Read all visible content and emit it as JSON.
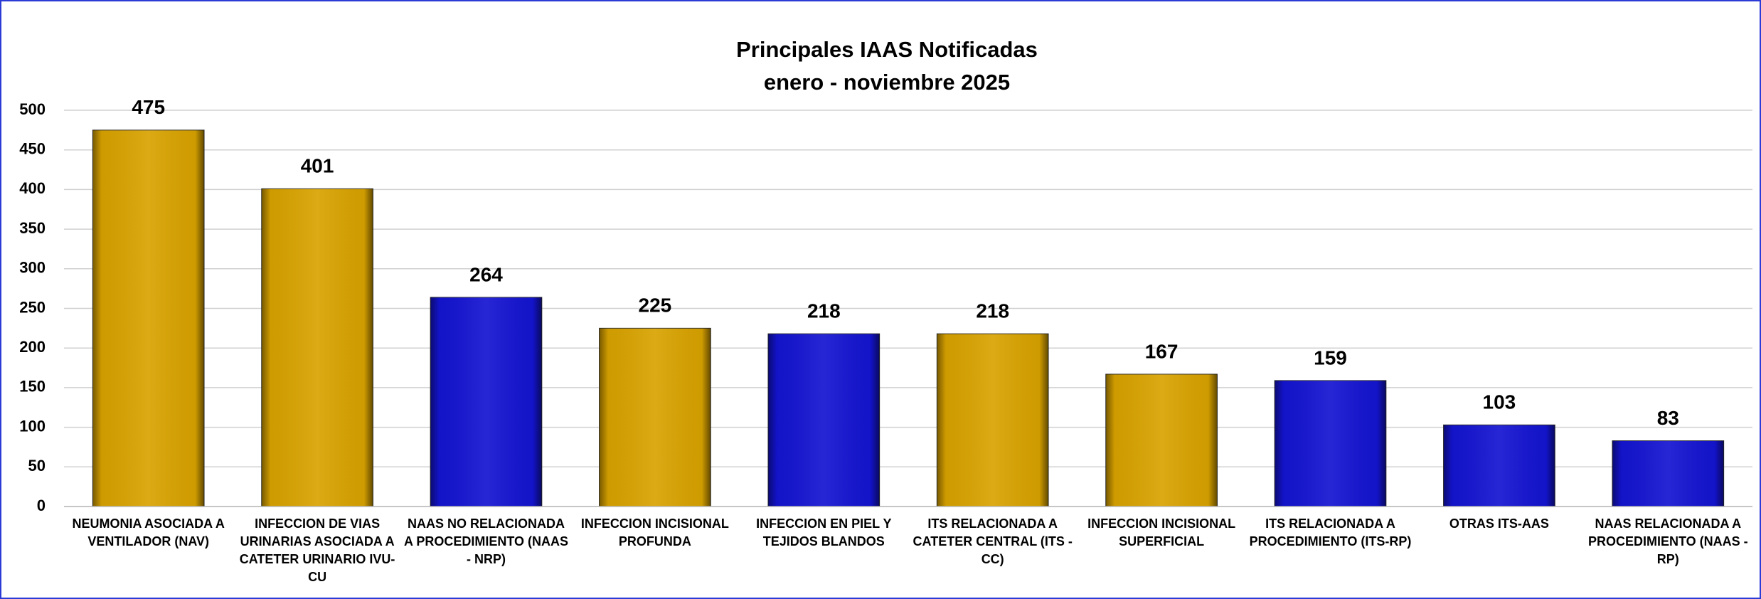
{
  "chart_data": {
    "type": "bar",
    "title": "Principales IAAS Notificadas",
    "subtitle": "enero - noviembre 2025",
    "categories": [
      "NEUMONIA ASOCIADA A VENTILADOR (NAV)",
      "INFECCION DE VIAS URINARIAS ASOCIADA A CATETER URINARIO IVU-CU",
      "NAAS NO RELACIONADA A PROCEDIMIENTO (NAAS - NRP)",
      "INFECCION INCISIONAL PROFUNDA",
      "INFECCION EN PIEL Y TEJIDOS BLANDOS",
      "ITS RELACIONADA A CATETER CENTRAL (ITS - CC)",
      "INFECCION INCISIONAL SUPERFICIAL",
      "ITS RELACIONADA A PROCEDIMIENTO (ITS-RP)",
      "OTRAS ITS-AAS",
      "NAAS RELACIONADA A PROCEDIMIENTO (NAAS - RP)"
    ],
    "values": [
      475,
      401,
      264,
      225,
      218,
      218,
      167,
      159,
      103,
      83
    ],
    "colors": [
      "#d9a300",
      "#d9a300",
      "#1414d2",
      "#d9a300",
      "#1414d2",
      "#d9a300",
      "#d9a300",
      "#1414d2",
      "#1414d2",
      "#1414d2"
    ],
    "ylim": [
      0,
      500
    ],
    "yticks": [
      0,
      50,
      100,
      150,
      200,
      250,
      300,
      350,
      400,
      450,
      500
    ],
    "grid": true
  }
}
